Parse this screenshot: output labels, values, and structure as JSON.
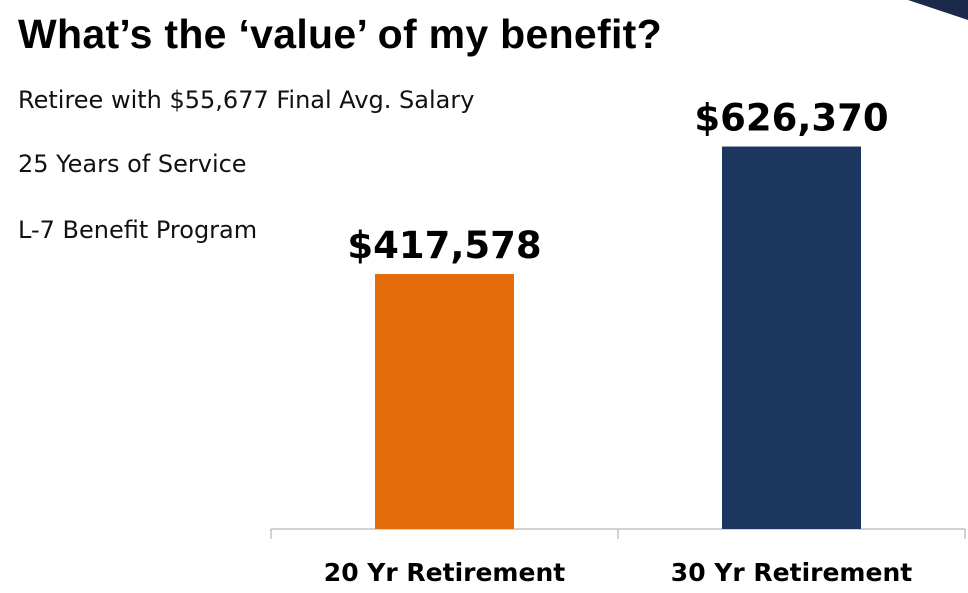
{
  "slide": {
    "title": "What’s the ‘value’ of my benefit?",
    "info_lines": [
      "Retiree with $55,677 Final Avg. Salary",
      "25 Years of Service",
      "L-7 Benefit Program"
    ]
  },
  "chart_data": {
    "type": "bar",
    "categories": [
      "20 Yr Retirement",
      "30 Yr Retirement"
    ],
    "values": [
      417578,
      626370
    ],
    "data_labels": [
      "$417,578",
      "$626,370"
    ],
    "bar_colors": [
      "#e46c0a",
      "#1b375f"
    ],
    "title": "",
    "xlabel": "",
    "ylabel": "",
    "ylim": [
      0,
      773000
    ],
    "grid": false,
    "legend": "none"
  },
  "colors": {
    "axis": "#a6a6a6",
    "text": "#000000",
    "accent": "#1b2a4a"
  }
}
